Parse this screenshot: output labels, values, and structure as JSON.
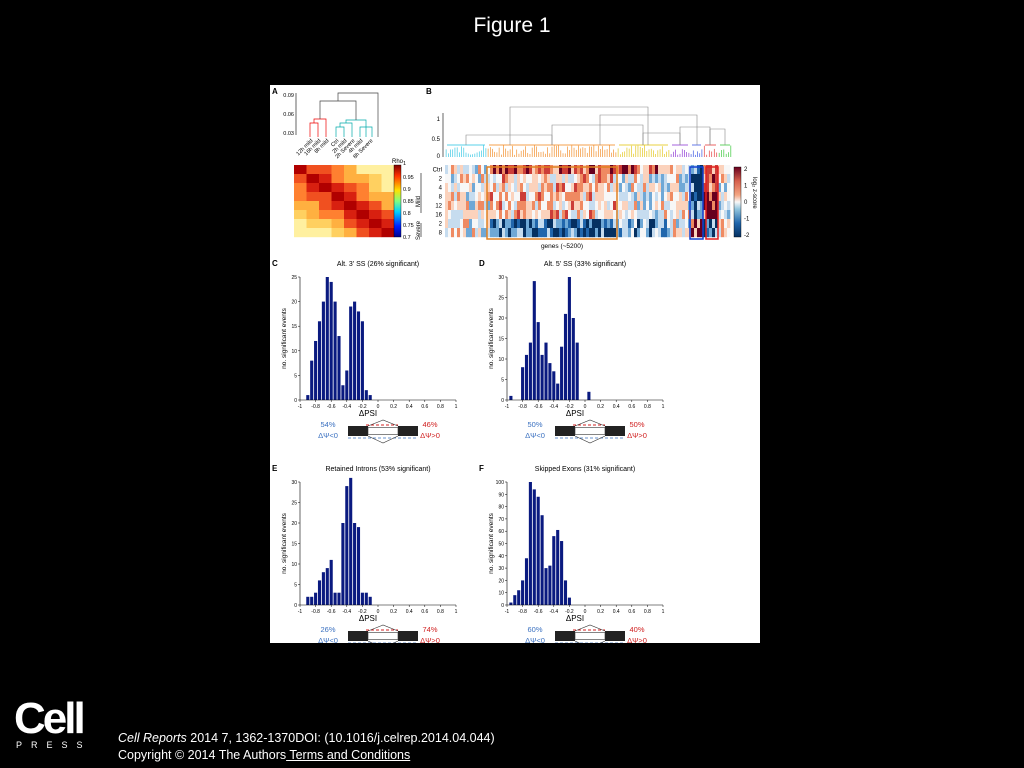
{
  "slide": {
    "title": "Figure 1",
    "citation_journal": "Cell Reports",
    "citation_rest": " 2014 7, 1362-1370DOI: (10.1016/j.celrep.2014.04.044)",
    "copyright": "Copyright © 2014 The Authors",
    "terms_link": " Terms and Conditions",
    "logo_word": "Cell",
    "logo_sub": "PRESS"
  },
  "panel_a": {
    "letter": "A",
    "dendro_ticks": [
      "0.09",
      "0.06",
      "0.03"
    ],
    "dendro_labels": [
      "12h mild",
      "16h mild",
      "8h mild",
      "Ctrl",
      "2h mild",
      "2h Severe",
      "4h mild",
      "8h Severe"
    ],
    "colorbar_title": "Rho",
    "colorbar_ticks": [
      "1",
      "0.95",
      "0.9",
      "0.85",
      "0.8",
      "0.75",
      "0.7"
    ]
  },
  "panel_b": {
    "letter": "B",
    "dendro_ticks": [
      "1",
      "0.5",
      "0"
    ],
    "row_labels": [
      "Ctrl",
      "2",
      "4",
      "8",
      "12",
      "16",
      "2",
      "8"
    ],
    "group_labels": [
      "Mild",
      "Severe"
    ],
    "xlabel": "genes (~5200)",
    "colorbar_ticks": [
      "2",
      "1",
      "0",
      "-1",
      "-2"
    ],
    "colorbar_title": "log₂ z-score"
  },
  "chart_data": [
    {
      "panel": "C",
      "type": "bar",
      "title": "Alt. 3' SS (26% significant)",
      "xlabel": "ΔPSI",
      "ylabel": "no. significant events",
      "xlim": [
        -1,
        1
      ],
      "ylim": [
        0,
        25
      ],
      "xticks": [
        "-1",
        "-0.8",
        "-0.6",
        "-0.4",
        "-0.2",
        "0",
        "0.2",
        "0.4",
        "0.6",
        "0.8",
        "1"
      ],
      "yticks": [
        "0",
        "5",
        "10",
        "15",
        "20",
        "25"
      ],
      "bins_start": -0.9,
      "bin_width": 0.05,
      "values": [
        1,
        8,
        12,
        16,
        20,
        25,
        24,
        20,
        13,
        3,
        6,
        19,
        20,
        18,
        16,
        2,
        1
      ],
      "neg_pct": "54%",
      "neg_label": "ΔΨ<0",
      "pos_pct": "46%",
      "pos_label": "ΔΨ>0"
    },
    {
      "panel": "D",
      "type": "bar",
      "title": "Alt. 5' SS (33% significant)",
      "xlabel": "ΔPSI",
      "ylabel": "no. significant events",
      "xlim": [
        -1,
        1
      ],
      "ylim": [
        0,
        30
      ],
      "xticks": [
        "-1",
        "-0.8",
        "-0.6",
        "-0.4",
        "-0.2",
        "0",
        "0.2",
        "0.4",
        "0.6",
        "0.8",
        "1"
      ],
      "yticks": [
        "0",
        "5",
        "10",
        "15",
        "20",
        "25",
        "30"
      ],
      "bins_start": -0.95,
      "bin_width": 0.05,
      "values": [
        1,
        0,
        0,
        8,
        11,
        14,
        29,
        19,
        11,
        14,
        9,
        7,
        4,
        13,
        21,
        30,
        20,
        14,
        0,
        0,
        2
      ],
      "neg_pct": "50%",
      "neg_label": "ΔΨ<0",
      "pos_pct": "50%",
      "pos_label": "ΔΨ>0"
    },
    {
      "panel": "E",
      "type": "bar",
      "title": "Retained Introns (53% significant)",
      "xlabel": "ΔPSI",
      "ylabel": "no. significant events",
      "xlim": [
        -1,
        1
      ],
      "ylim": [
        0,
        30
      ],
      "xticks": [
        "-1",
        "-0.8",
        "-0.6",
        "-0.4",
        "-0.2",
        "0",
        "0.2",
        "0.4",
        "0.6",
        "0.8",
        "1"
      ],
      "yticks": [
        "0",
        "5",
        "10",
        "15",
        "20",
        "25",
        "30"
      ],
      "bins_start": -0.9,
      "bin_width": 0.05,
      "values": [
        2,
        2,
        3,
        6,
        8,
        9,
        11,
        3,
        3,
        20,
        29,
        31,
        20,
        19,
        3,
        3,
        2
      ],
      "neg_pct": "26%",
      "neg_label": "ΔΨ<0",
      "pos_pct": "74%",
      "pos_label": "ΔΨ>0"
    },
    {
      "panel": "F",
      "type": "bar",
      "title": "Skipped Exons (31% significant)",
      "xlabel": "ΔPSI",
      "ylabel": "no. significant events",
      "xlim": [
        -1,
        1
      ],
      "ylim": [
        0,
        100
      ],
      "xticks": [
        "-1",
        "-0.8",
        "-0.6",
        "-0.4",
        "-0.2",
        "0",
        "0.2",
        "0.4",
        "0.6",
        "0.8",
        "1"
      ],
      "yticks": [
        "0",
        "10",
        "20",
        "30",
        "40",
        "50",
        "60",
        "70",
        "80",
        "90",
        "100"
      ],
      "bins_start": -0.95,
      "bin_width": 0.05,
      "values": [
        2,
        8,
        12,
        20,
        38,
        100,
        94,
        88,
        73,
        30,
        32,
        56,
        61,
        52,
        20,
        6
      ],
      "neg_pct": "60%",
      "neg_label": "ΔΨ<0",
      "pos_pct": "40%",
      "pos_label": "ΔΨ>0"
    }
  ]
}
